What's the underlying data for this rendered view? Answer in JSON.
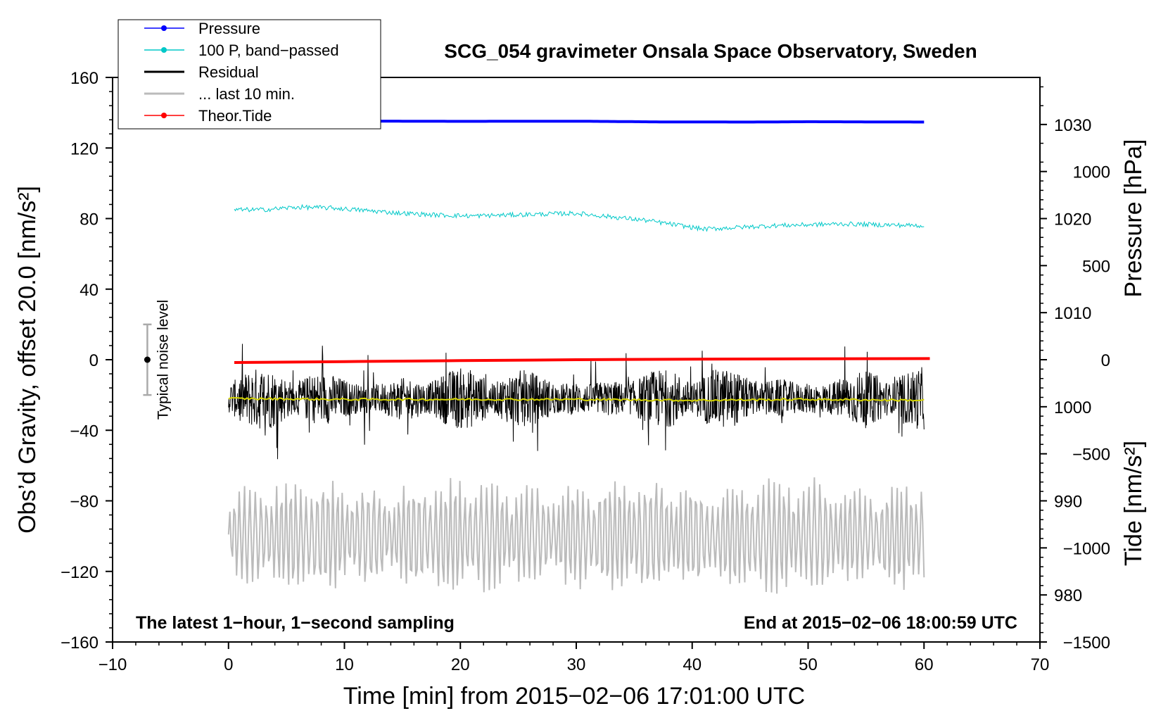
{
  "chart_data": {
    "type": "line",
    "title": "SCG_054 gravimeter Onsala Space Observatory, Sweden",
    "xlabel": "Time [min] from 2015−02−06 17:01:00 UTC",
    "ylabel_left": "Obs’d Gravity, offset 20.0 [nm/s²]",
    "ylabel_pressure": "Pressure [hPa]",
    "ylabel_tide": "Tide [nm/s²]",
    "xlim": [
      -10,
      70
    ],
    "ylim": [
      -160,
      160
    ],
    "pressure_range": [
      975,
      1035
    ],
    "tide_range": [
      -1500,
      1500
    ],
    "x_ticks": [
      -10,
      0,
      10,
      20,
      30,
      40,
      50,
      60,
      70
    ],
    "x_tick_labels": [
      "−10",
      "0",
      "10",
      "20",
      "30",
      "40",
      "50",
      "60",
      "70"
    ],
    "y_ticks": [
      -160,
      -120,
      -80,
      -40,
      0,
      40,
      80,
      120,
      160
    ],
    "y_tick_labels": [
      "−160",
      "−120",
      "−80",
      "−40",
      "0",
      "40",
      "80",
      "120",
      "160"
    ],
    "pressure_ticks": [
      980,
      990,
      1000,
      1010,
      1020,
      1030
    ],
    "pressure_tick_labels": [
      "980",
      "990",
      "1000",
      "1010",
      "1020",
      "1030"
    ],
    "tide_ticks": [
      -1500,
      -1000,
      -500,
      0,
      500,
      1000
    ],
    "tide_tick_labels": [
      "−1500",
      "−1000",
      "−500",
      "0",
      "500",
      "1000"
    ],
    "note_left": "The latest 1−hour, 1−second sampling",
    "note_right": "End at 2015−02−06 18:00:59 UTC",
    "noise_label": "Typical noise level",
    "noise_bar": {
      "x": -7,
      "center": 0,
      "low": -20,
      "high": 20
    },
    "legend": [
      {
        "label": "Pressure",
        "color": "#0000ff",
        "style": "line-dot"
      },
      {
        "label": "100 P, band−passed",
        "color": "#00c8c8",
        "style": "line-dot"
      },
      {
        "label": "Residual",
        "color": "#000000",
        "style": "line"
      },
      {
        "label": "... last 10 min.",
        "color": "#bbbbbb",
        "style": "line"
      },
      {
        "label": "Theor.Tide",
        "color": "#ff0000",
        "style": "line-dot"
      }
    ],
    "series": [
      {
        "name": "Pressure",
        "color": "#0000ff",
        "axis": "left",
        "x": [
          0,
          10,
          20,
          30,
          37,
          45,
          50,
          55,
          60
        ],
        "values": [
          135.2,
          135.3,
          135.1,
          135.2,
          134.8,
          134.7,
          134.9,
          134.8,
          134.7
        ]
      },
      {
        "name": "100 P, band−passed",
        "color": "#00c8c8",
        "axis": "left",
        "x": [
          0.5,
          3,
          6,
          9,
          12,
          15,
          18,
          21,
          24,
          27,
          30,
          33,
          36,
          39,
          41,
          44,
          47,
          50,
          53,
          56,
          60
        ],
        "values": [
          85,
          85,
          86.5,
          86,
          84.5,
          83,
          82,
          81.5,
          82,
          82.5,
          83,
          81,
          79,
          76,
          74,
          75,
          76,
          76.5,
          77,
          76.5,
          76
        ],
        "noise": 1.3
      },
      {
        "name": "Residual",
        "color": "#000000",
        "axis": "left",
        "x_start": 0,
        "x_end": 60,
        "mean": -22,
        "amplitude_range": [
          -60,
          25
        ]
      },
      {
        "name": "Residual, smoothed",
        "color": "#d4d400",
        "axis": "left",
        "x": [
          0,
          10,
          20,
          30,
          40,
          50,
          60
        ],
        "values": [
          -22,
          -22.5,
          -22.5,
          -22.5,
          -23,
          -22.5,
          -23
        ]
      },
      {
        "name": "... last 10 min.",
        "color": "#bbbbbb",
        "axis": "left",
        "x_start": 0,
        "x_end": 60,
        "center": -100,
        "amplitude_range": [
          -135,
          -65
        ]
      },
      {
        "name": "Theor.Tide",
        "color": "#ff0000",
        "axis": "tide",
        "x": [
          0.5,
          10,
          20,
          30,
          40,
          50,
          60.5
        ],
        "values": [
          -15,
          -10,
          -5,
          0,
          3,
          5,
          6
        ]
      }
    ]
  }
}
